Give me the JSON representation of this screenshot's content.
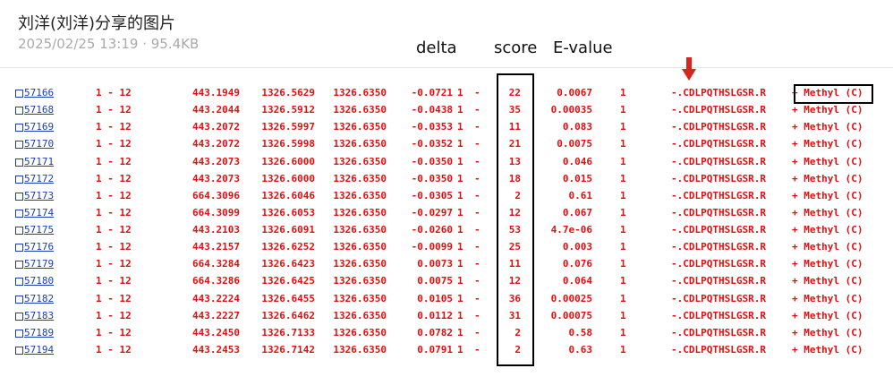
{
  "header": {
    "title": "刘洋(刘洋)分享的图片",
    "meta": "2025/02/25 13:19 · 95.4KB"
  },
  "annotations": [
    "delta",
    "score",
    "E-value"
  ],
  "table": {
    "rows": [
      [
        "57166",
        "1 - 12",
        "443.1949",
        "1326.5629",
        "1326.6350",
        "-0.0721",
        "1",
        "-",
        "22",
        "0.0067",
        "1",
        "-.CDLPQTHSLGSR.R",
        "+ Methyl (C)"
      ],
      [
        "57168",
        "1 - 12",
        "443.2044",
        "1326.5912",
        "1326.6350",
        "-0.0438",
        "1",
        "-",
        "35",
        "0.00035",
        "1",
        "-.CDLPQTHSLGSR.R",
        "+ Methyl (C)"
      ],
      [
        "57169",
        "1 - 12",
        "443.2072",
        "1326.5997",
        "1326.6350",
        "-0.0353",
        "1",
        "-",
        "11",
        "0.083",
        "1",
        "-.CDLPQTHSLGSR.R",
        "+ Methyl (C)"
      ],
      [
        "57170",
        "1 - 12",
        "443.2072",
        "1326.5998",
        "1326.6350",
        "-0.0352",
        "1",
        "-",
        "21",
        "0.0075",
        "1",
        "-.CDLPQTHSLGSR.R",
        "+ Methyl (C)"
      ],
      [
        "57171",
        "1 - 12",
        "443.2073",
        "1326.6000",
        "1326.6350",
        "-0.0350",
        "1",
        "-",
        "13",
        "0.046",
        "1",
        "-.CDLPQTHSLGSR.R",
        "+ Methyl (C)"
      ],
      [
        "57172",
        "1 - 12",
        "443.2073",
        "1326.6000",
        "1326.6350",
        "-0.0350",
        "1",
        "-",
        "18",
        "0.015",
        "1",
        "-.CDLPQTHSLGSR.R",
        "+ Methyl (C)"
      ],
      [
        "57173",
        "1 - 12",
        "664.3096",
        "1326.6046",
        "1326.6350",
        "-0.0305",
        "1",
        "-",
        "2",
        "0.61",
        "1",
        "-.CDLPQTHSLGSR.R",
        "+ Methyl (C)"
      ],
      [
        "57174",
        "1 - 12",
        "664.3099",
        "1326.6053",
        "1326.6350",
        "-0.0297",
        "1",
        "-",
        "12",
        "0.067",
        "1",
        "-.CDLPQTHSLGSR.R",
        "+ Methyl (C)"
      ],
      [
        "57175",
        "1 - 12",
        "443.2103",
        "1326.6091",
        "1326.6350",
        "-0.0260",
        "1",
        "-",
        "53",
        "4.7e-06",
        "1",
        "-.CDLPQTHSLGSR.R",
        "+ Methyl (C)"
      ],
      [
        "57176",
        "1 - 12",
        "443.2157",
        "1326.6252",
        "1326.6350",
        "-0.0099",
        "1",
        "-",
        "25",
        "0.003",
        "1",
        "-.CDLPQTHSLGSR.R",
        "+ Methyl (C)"
      ],
      [
        "57179",
        "1 - 12",
        "664.3284",
        "1326.6423",
        "1326.6350",
        "0.0073",
        "1",
        "-",
        "11",
        "0.076",
        "1",
        "-.CDLPQTHSLGSR.R",
        "+ Methyl (C)"
      ],
      [
        "57180",
        "1 - 12",
        "664.3286",
        "1326.6425",
        "1326.6350",
        "0.0075",
        "1",
        "-",
        "12",
        "0.064",
        "1",
        "-.CDLPQTHSLGSR.R",
        "+ Methyl (C)"
      ],
      [
        "57182",
        "1 - 12",
        "443.2224",
        "1326.6455",
        "1326.6350",
        "0.0105",
        "1",
        "-",
        "36",
        "0.00025",
        "1",
        "-.CDLPQTHSLGSR.R",
        "+ Methyl (C)"
      ],
      [
        "57183",
        "1 - 12",
        "443.2227",
        "1326.6462",
        "1326.6350",
        "0.0112",
        "1",
        "-",
        "31",
        "0.00075",
        "1",
        "-.CDLPQTHSLGSR.R",
        "+ Methyl (C)"
      ],
      [
        "57189",
        "1 - 12",
        "443.2450",
        "1326.7133",
        "1326.6350",
        "0.0782",
        "1",
        "-",
        "2",
        "0.58",
        "1",
        "-.CDLPQTHSLGSR.R",
        "+ Methyl (C)"
      ],
      [
        "57194",
        "1 - 12",
        "443.2453",
        "1326.7142",
        "1326.6350",
        "0.0791",
        "1",
        "-",
        "2",
        "0.63",
        "1",
        "-.CDLPQTHSLGSR.R",
        "+ Methyl (C)"
      ]
    ]
  }
}
